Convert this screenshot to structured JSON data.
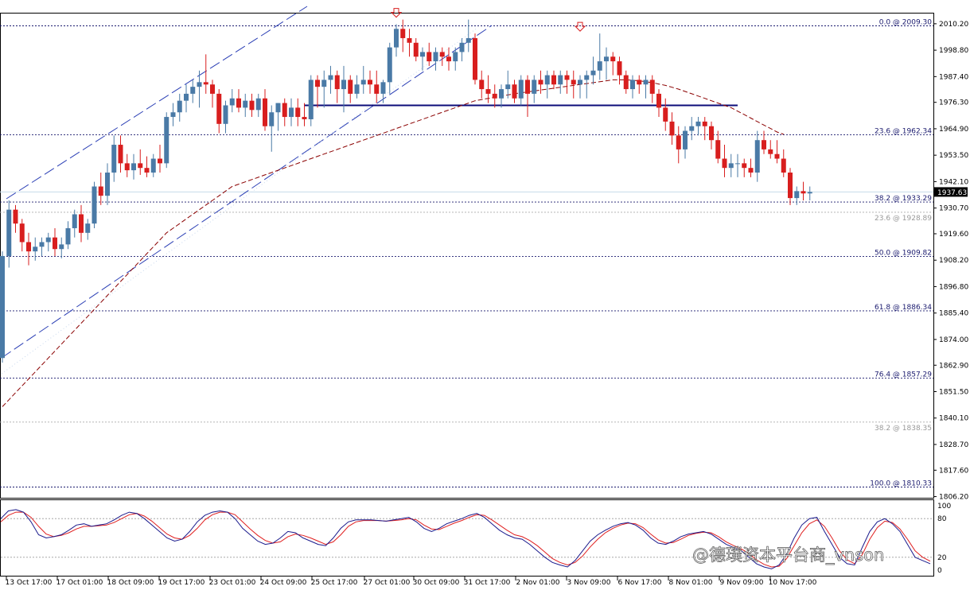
{
  "chart_data": {
    "type": "candlestick",
    "price_ylim": [
      1806.2,
      2018.0
    ],
    "price_ticks": [
      "2010.20",
      "1998.80",
      "1987.40",
      "1976.30",
      "1964.90",
      "1953.50",
      "1942.10",
      "1930.70",
      "1919.60",
      "1908.20",
      "1896.80",
      "1885.40",
      "1874.00",
      "1862.90",
      "1851.50",
      "1840.10",
      "1828.70",
      "1817.60",
      "1806.20"
    ],
    "current_price": "1937.63",
    "time_labels": [
      "13 Oct 17:00",
      "17 Oct 01:00",
      "18 Oct 09:00",
      "19 Oct 17:00",
      "23 Oct 01:00",
      "24 Oct 09:00",
      "25 Oct 17:00",
      "27 Oct 01:00",
      "30 Oct 09:00",
      "31 Oct 17:00",
      "2 Nov 01:00",
      "3 Nov 09:00",
      "6 Nov 17:00",
      "8 Nov 01:00",
      "9 Nov 09:00",
      "10 Nov 17:00"
    ],
    "fib_primary": [
      {
        "label": "0.0 @ 2009.30",
        "value": 2009.3
      },
      {
        "label": "23.6 @ 1962.34",
        "value": 1962.34
      },
      {
        "label": "38.2 @ 1933.29",
        "value": 1933.29
      },
      {
        "label": "50.0 @ 1909.82",
        "value": 1909.82
      },
      {
        "label": "61.8 @ 1886.34",
        "value": 1886.34
      },
      {
        "label": "76.4 @ 1857.29",
        "value": 1857.29
      },
      {
        "label": "100.0 @ 1810.33",
        "value": 1810.33
      }
    ],
    "fib_secondary": [
      {
        "label": "23.6 @ 1928.89",
        "value": 1928.89
      },
      {
        "label": "38.2 @ 1838.35",
        "value": 1838.35
      }
    ],
    "support_line": {
      "value": 1975.0,
      "from_bar": 46,
      "to_bar": 112
    },
    "candles": [
      [
        1866,
        1912,
        1864,
        1910
      ],
      [
        1910,
        1934,
        1905,
        1930
      ],
      [
        1930,
        1932,
        1920,
        1924
      ],
      [
        1924,
        1926,
        1912,
        1916
      ],
      [
        1916,
        1920,
        1906,
        1912
      ],
      [
        1912,
        1918,
        1908,
        1914
      ],
      [
        1914,
        1918,
        1910,
        1916
      ],
      [
        1916,
        1920,
        1912,
        1918
      ],
      [
        1918,
        1922,
        1910,
        1913
      ],
      [
        1913,
        1918,
        1909,
        1915
      ],
      [
        1915,
        1925,
        1913,
        1922
      ],
      [
        1922,
        1930,
        1918,
        1928
      ],
      [
        1928,
        1932,
        1916,
        1920
      ],
      [
        1920,
        1926,
        1917,
        1924
      ],
      [
        1924,
        1942,
        1922,
        1940
      ],
      [
        1940,
        1946,
        1932,
        1936
      ],
      [
        1936,
        1950,
        1932,
        1946
      ],
      [
        1946,
        1962,
        1942,
        1958
      ],
      [
        1958,
        1962,
        1946,
        1950
      ],
      [
        1950,
        1954,
        1944,
        1947
      ],
      [
        1947,
        1954,
        1943,
        1950
      ],
      [
        1950,
        1956,
        1945,
        1948
      ],
      [
        1948,
        1953,
        1944,
        1946
      ],
      [
        1946,
        1954,
        1944,
        1952
      ],
      [
        1952,
        1958,
        1946,
        1950
      ],
      [
        1950,
        1972,
        1948,
        1970
      ],
      [
        1970,
        1976,
        1966,
        1972
      ],
      [
        1972,
        1980,
        1968,
        1977
      ],
      [
        1977,
        1984,
        1972,
        1980
      ],
      [
        1980,
        1986,
        1976,
        1983
      ],
      [
        1983,
        1990,
        1974,
        1985
      ],
      [
        1985,
        1997,
        1980,
        1984
      ],
      [
        1984,
        1986,
        1974,
        1980
      ],
      [
        1980,
        1982,
        1963,
        1967
      ],
      [
        1967,
        1977,
        1963,
        1975
      ],
      [
        1975,
        1982,
        1972,
        1978
      ],
      [
        1978,
        1982,
        1972,
        1974
      ],
      [
        1974,
        1980,
        1970,
        1977
      ],
      [
        1977,
        1980,
        1970,
        1973
      ],
      [
        1973,
        1980,
        1970,
        1978
      ],
      [
        1978,
        1982,
        1964,
        1966
      ],
      [
        1966,
        1975,
        1955,
        1972
      ],
      [
        1972,
        1976,
        1964,
        1976
      ],
      [
        1976,
        1978,
        1966,
        1970
      ],
      [
        1970,
        1978,
        1966,
        1974
      ],
      [
        1974,
        1978,
        1966,
        1970
      ],
      [
        1970,
        1976,
        1966,
        1969
      ],
      [
        1969,
        1988,
        1966,
        1986
      ],
      [
        1986,
        1988,
        1974,
        1983
      ],
      [
        1983,
        1990,
        1974,
        1986
      ],
      [
        1986,
        1992,
        1980,
        1988
      ],
      [
        1988,
        1990,
        1976,
        1982
      ],
      [
        1982,
        1992,
        1972,
        1986
      ],
      [
        1986,
        1988,
        1976,
        1980
      ],
      [
        1980,
        1988,
        1978,
        1984
      ],
      [
        1984,
        1992,
        1980,
        1986
      ],
      [
        1986,
        1990,
        1980,
        1984
      ],
      [
        1984,
        1990,
        1976,
        1980
      ],
      [
        1980,
        1986,
        1976,
        1985
      ],
      [
        1985,
        2002,
        1980,
        2000
      ],
      [
        2000,
        2010,
        1996,
        2008
      ],
      [
        2008,
        2012,
        1998,
        2004
      ],
      [
        2004,
        2008,
        1996,
        2002
      ],
      [
        2002,
        2004,
        1994,
        1996
      ],
      [
        1996,
        2000,
        1990,
        1998
      ],
      [
        1998,
        2002,
        1992,
        1994
      ],
      [
        1994,
        2000,
        1990,
        1998
      ],
      [
        1998,
        2000,
        1992,
        1996
      ],
      [
        1996,
        2000,
        1990,
        1994
      ],
      [
        1994,
        2000,
        1990,
        1998
      ],
      [
        1998,
        2004,
        1994,
        2002
      ],
      [
        2002,
        2012,
        1998,
        2004
      ],
      [
        2004,
        2006,
        1984,
        1986
      ],
      [
        1986,
        1990,
        1978,
        1982
      ],
      [
        1982,
        1988,
        1976,
        1980
      ],
      [
        1980,
        1984,
        1974,
        1978
      ],
      [
        1978,
        1984,
        1974,
        1982
      ],
      [
        1982,
        1990,
        1978,
        1984
      ],
      [
        1984,
        1986,
        1976,
        1978
      ],
      [
        1978,
        1988,
        1975,
        1986
      ],
      [
        1986,
        1988,
        1970,
        1980
      ],
      [
        1980,
        1988,
        1976,
        1986
      ],
      [
        1986,
        1990,
        1980,
        1984
      ],
      [
        1984,
        1990,
        1978,
        1988
      ],
      [
        1988,
        1990,
        1982,
        1984
      ],
      [
        1984,
        1990,
        1980,
        1988
      ],
      [
        1988,
        1990,
        1980,
        1986
      ],
      [
        1986,
        1990,
        1978,
        1984
      ],
      [
        1984,
        1988,
        1978,
        1986
      ],
      [
        1986,
        1990,
        1978,
        1988
      ],
      [
        1988,
        1996,
        1984,
        1990
      ],
      [
        1990,
        2006,
        1986,
        1994
      ],
      [
        1994,
        2000,
        1986,
        1996
      ],
      [
        1996,
        1998,
        1988,
        1994
      ],
      [
        1994,
        1996,
        1984,
        1988
      ],
      [
        1988,
        1990,
        1980,
        1982
      ],
      [
        1982,
        1988,
        1978,
        1986
      ],
      [
        1986,
        1988,
        1980,
        1984
      ],
      [
        1984,
        1988,
        1978,
        1986
      ],
      [
        1986,
        1988,
        1976,
        1980
      ],
      [
        1980,
        1982,
        1970,
        1974
      ],
      [
        1974,
        1978,
        1964,
        1968
      ],
      [
        1968,
        1972,
        1958,
        1962
      ],
      [
        1962,
        1966,
        1950,
        1956
      ],
      [
        1956,
        1966,
        1952,
        1964
      ],
      [
        1964,
        1970,
        1960,
        1966
      ],
      [
        1966,
        1970,
        1962,
        1968
      ],
      [
        1968,
        1970,
        1960,
        1966
      ],
      [
        1966,
        1968,
        1956,
        1960
      ],
      [
        1960,
        1964,
        1950,
        1952
      ],
      [
        1952,
        1958,
        1944,
        1948
      ],
      [
        1948,
        1954,
        1944,
        1950
      ],
      [
        1950,
        1954,
        1944,
        1950
      ],
      [
        1950,
        1952,
        1944,
        1948
      ],
      [
        1948,
        1952,
        1944,
        1946
      ],
      [
        1946,
        1964,
        1942,
        1960
      ],
      [
        1960,
        1964,
        1954,
        1956
      ],
      [
        1956,
        1960,
        1952,
        1954
      ],
      [
        1954,
        1960,
        1950,
        1952
      ],
      [
        1952,
        1956,
        1944,
        1946
      ],
      [
        1946,
        1948,
        1932,
        1935
      ],
      [
        1935,
        1940,
        1932,
        1938
      ],
      [
        1938,
        1942,
        1934,
        1937
      ],
      [
        1937,
        1940,
        1934,
        1937.63
      ]
    ],
    "ma_values": [
      1845,
      1848,
      1851,
      1854,
      1857,
      1860,
      1863,
      1866,
      1869,
      1872,
      1875,
      1878,
      1881,
      1884,
      1887,
      1890,
      1893,
      1896,
      1899,
      1902,
      1905,
      1908,
      1911,
      1914,
      1917,
      1920,
      1922,
      1924,
      1926,
      1928,
      1930,
      1932,
      1934,
      1936,
      1938,
      1940,
      1941,
      1942,
      1943,
      1944,
      1945,
      1946,
      1947,
      1948,
      1949,
      1950,
      1951,
      1952,
      1953,
      1954,
      1955,
      1956,
      1957,
      1958,
      1959,
      1960,
      1961,
      1962,
      1963,
      1964,
      1965,
      1966,
      1967,
      1968,
      1969,
      1970,
      1971,
      1972,
      1973,
      1974,
      1975,
      1976,
      1977,
      1977.5,
      1978,
      1978.5,
      1979,
      1979.5,
      1980,
      1980.4,
      1980.8,
      1981.2,
      1981.6,
      1982,
      1982.4,
      1982.8,
      1983.2,
      1983.6,
      1984,
      1984.4,
      1984.8,
      1985.2,
      1985.6,
      1986,
      1986,
      1986,
      1985.8,
      1985.6,
      1985.2,
      1984.8,
      1984.2,
      1983.6,
      1982.8,
      1982,
      1981,
      1980,
      1979,
      1978,
      1977,
      1976,
      1975,
      1974,
      1972.5,
      1971,
      1969.5,
      1968,
      1966.5,
      1965,
      1963.5,
      1962.5
    ],
    "stoch_levels": [
      "100",
      "80",
      "20",
      "0"
    ],
    "stoch_k": [
      80,
      92,
      94,
      90,
      75,
      55,
      50,
      52,
      55,
      62,
      70,
      72,
      68,
      70,
      72,
      78,
      85,
      90,
      88,
      80,
      70,
      60,
      50,
      45,
      48,
      60,
      75,
      85,
      90,
      92,
      90,
      80,
      65,
      55,
      45,
      40,
      42,
      50,
      60,
      58,
      50,
      45,
      40,
      38,
      50,
      65,
      75,
      78,
      78,
      78,
      77,
      76,
      78,
      80,
      82,
      75,
      65,
      60,
      65,
      72,
      76,
      80,
      85,
      88,
      82,
      72,
      62,
      55,
      50,
      48,
      40,
      30,
      20,
      12,
      8,
      5,
      15,
      30,
      45,
      55,
      62,
      68,
      72,
      74,
      70,
      62,
      50,
      42,
      40,
      45,
      52,
      56,
      58,
      60,
      56,
      48,
      40,
      35,
      30,
      20,
      10,
      5,
      2,
      8,
      25,
      50,
      70,
      80,
      82,
      60,
      40,
      20,
      10,
      8,
      35,
      60,
      75,
      80,
      72,
      60,
      40,
      20,
      15,
      10
    ],
    "stoch_d": [
      75,
      85,
      90,
      90,
      82,
      68,
      56,
      52,
      54,
      58,
      64,
      68,
      68,
      69,
      70,
      74,
      80,
      86,
      88,
      84,
      76,
      66,
      56,
      50,
      48,
      54,
      65,
      78,
      86,
      90,
      90,
      86,
      75,
      64,
      54,
      46,
      42,
      44,
      52,
      56,
      54,
      50,
      45,
      40,
      44,
      55,
      68,
      75,
      77,
      77,
      77,
      76,
      77,
      78,
      80,
      78,
      70,
      64,
      63,
      68,
      73,
      77,
      82,
      86,
      85,
      78,
      70,
      62,
      55,
      52,
      46,
      38,
      28,
      18,
      12,
      8,
      12,
      22,
      36,
      48,
      58,
      65,
      70,
      73,
      72,
      66,
      56,
      47,
      42,
      43,
      48,
      54,
      57,
      59,
      58,
      52,
      44,
      38,
      33,
      26,
      16,
      9,
      5,
      6,
      18,
      38,
      58,
      72,
      78,
      68,
      50,
      30,
      16,
      10,
      24,
      48,
      66,
      76,
      74,
      64,
      48,
      30,
      20,
      14
    ],
    "watermark": "@德璞资本平台商_vnson"
  }
}
